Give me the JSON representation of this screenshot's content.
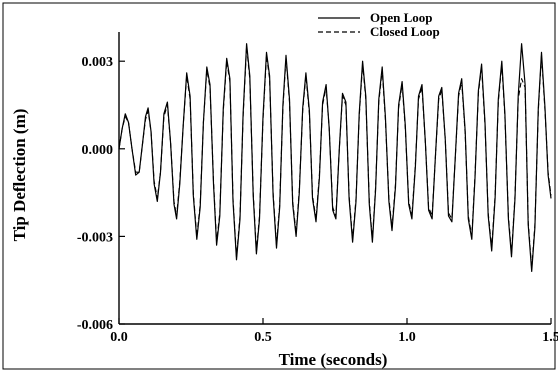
{
  "chart_data": {
    "type": "line",
    "title": "",
    "xlabel": "Time (seconds)",
    "ylabel": "Tip Deflection (m)",
    "xlim": [
      0.0,
      1.5
    ],
    "ylim": [
      -0.006,
      0.004
    ],
    "xticks": [
      {
        "value": 0.0,
        "label": "0.0"
      },
      {
        "value": 0.5,
        "label": "0.5"
      },
      {
        "value": 1.0,
        "label": "1.0"
      },
      {
        "value": 1.5,
        "label": "1.5"
      }
    ],
    "yticks": [
      {
        "value": 0.003,
        "label": "0.003"
      },
      {
        "value": 0.0,
        "label": "0.000"
      },
      {
        "value": -0.003,
        "label": "-0.003"
      },
      {
        "value": -0.006,
        "label": "-0.006"
      }
    ],
    "grid": false,
    "legend_position": "top-right",
    "series": [
      {
        "name": "Open Loop",
        "style": "solid",
        "color": "#000000",
        "x": [
          0.0,
          0.011,
          0.022,
          0.033,
          0.045,
          0.058,
          0.07,
          0.082,
          0.092,
          0.101,
          0.111,
          0.122,
          0.133,
          0.144,
          0.156,
          0.168,
          0.179,
          0.191,
          0.2,
          0.211,
          0.223,
          0.235,
          0.247,
          0.258,
          0.27,
          0.282,
          0.293,
          0.305,
          0.316,
          0.328,
          0.339,
          0.35,
          0.362,
          0.374,
          0.385,
          0.396,
          0.408,
          0.42,
          0.431,
          0.443,
          0.454,
          0.466,
          0.477,
          0.488,
          0.5,
          0.512,
          0.523,
          0.535,
          0.547,
          0.558,
          0.569,
          0.58,
          0.592,
          0.603,
          0.615,
          0.626,
          0.638,
          0.649,
          0.661,
          0.672,
          0.684,
          0.696,
          0.707,
          0.719,
          0.73,
          0.742,
          0.753,
          0.765,
          0.776,
          0.788,
          0.799,
          0.811,
          0.823,
          0.834,
          0.846,
          0.857,
          0.869,
          0.88,
          0.891,
          0.902,
          0.914,
          0.925,
          0.937,
          0.948,
          0.96,
          0.971,
          0.983,
          0.994,
          1.006,
          1.017,
          1.029,
          1.04,
          1.052,
          1.064,
          1.075,
          1.087,
          1.098,
          1.11,
          1.121,
          1.133,
          1.144,
          1.156,
          1.167,
          1.179,
          1.19,
          1.202,
          1.213,
          1.225,
          1.236,
          1.248,
          1.259,
          1.271,
          1.282,
          1.294,
          1.306,
          1.317,
          1.329,
          1.34,
          1.352,
          1.363,
          1.375,
          1.386,
          1.398,
          1.41,
          1.421,
          1.433,
          1.444,
          1.456,
          1.467,
          1.479,
          1.49,
          1.5
        ],
        "y": [
          0.0,
          0.0007,
          0.0012,
          0.0009,
          0.0,
          -0.0009,
          -0.0008,
          0.0002,
          0.0011,
          0.0014,
          0.0006,
          -0.0012,
          -0.0018,
          -0.0008,
          0.0012,
          0.0016,
          0.0002,
          -0.0019,
          -0.0024,
          -0.0012,
          0.0008,
          0.0026,
          0.0018,
          -0.0016,
          -0.0031,
          -0.002,
          0.0009,
          0.0028,
          0.0022,
          -0.0012,
          -0.0033,
          -0.0023,
          0.0014,
          0.0031,
          0.0024,
          -0.0018,
          -0.0038,
          -0.0024,
          0.0012,
          0.0036,
          0.0025,
          -0.0016,
          -0.0036,
          -0.0024,
          0.0011,
          0.0033,
          0.0025,
          -0.0016,
          -0.0034,
          -0.002,
          0.0015,
          0.0032,
          0.0017,
          -0.0019,
          -0.003,
          -0.0015,
          0.0014,
          0.0026,
          0.0013,
          -0.0017,
          -0.0025,
          -0.001,
          0.0016,
          0.0022,
          0.0007,
          -0.0021,
          -0.0024,
          0.0,
          0.0019,
          0.0016,
          -0.0017,
          -0.0032,
          -0.0018,
          0.0012,
          0.003,
          0.0018,
          -0.0019,
          -0.0032,
          -0.0014,
          0.0017,
          0.0028,
          0.0011,
          -0.0018,
          -0.0028,
          -0.0013,
          0.0015,
          0.0023,
          0.0008,
          -0.0019,
          -0.0024,
          -0.0006,
          0.0018,
          0.0022,
          0.0002,
          -0.0021,
          -0.0024,
          -0.0004,
          0.0018,
          0.0021,
          0.0003,
          -0.0023,
          -0.0025,
          -0.0004,
          0.0019,
          0.0024,
          0.0006,
          -0.0024,
          -0.0031,
          -0.001,
          0.002,
          0.0029,
          0.0009,
          -0.0023,
          -0.0035,
          -0.0017,
          0.0017,
          0.003,
          0.0012,
          -0.0024,
          -0.0037,
          -0.0017,
          0.0018,
          0.0036,
          0.0022,
          -0.0026,
          -0.0042,
          -0.0027,
          0.0014,
          0.0033,
          0.0014,
          -0.0009,
          -0.0017
        ],
        "note": ""
      },
      {
        "name": "Closed Loop",
        "style": "dashed",
        "color": "#000000",
        "x": [
          0.0,
          0.011,
          0.022,
          0.033,
          0.045,
          0.058,
          0.07,
          0.082,
          0.092,
          0.101,
          0.111,
          0.122,
          0.133,
          0.144,
          0.156,
          0.168,
          0.179,
          0.191,
          0.2,
          0.211,
          0.223,
          0.235,
          0.247,
          0.258,
          0.27,
          0.282,
          0.293,
          0.305,
          0.316,
          0.328,
          0.339,
          0.35,
          0.362,
          0.374,
          0.385,
          0.396,
          0.408,
          0.42,
          0.431,
          0.443,
          0.454,
          0.466,
          0.477,
          0.488,
          0.5,
          0.512,
          0.523,
          0.535,
          0.547,
          0.558,
          0.569,
          0.58,
          0.592,
          0.603,
          0.615,
          0.626,
          0.638,
          0.649,
          0.661,
          0.672,
          0.684,
          0.696,
          0.707,
          0.719,
          0.73,
          0.742,
          0.753,
          0.765,
          0.776,
          0.788,
          0.799,
          0.811,
          0.823,
          0.834,
          0.846,
          0.857,
          0.869,
          0.88,
          0.891,
          0.902,
          0.914,
          0.925,
          0.937,
          0.948,
          0.96,
          0.971,
          0.983,
          0.994,
          1.006,
          1.017,
          1.029,
          1.04,
          1.052,
          1.064,
          1.075,
          1.087,
          1.098,
          1.11,
          1.121,
          1.133,
          1.144,
          1.156,
          1.167,
          1.179,
          1.19,
          1.202,
          1.213,
          1.225,
          1.236,
          1.248,
          1.259,
          1.271,
          1.282,
          1.294,
          1.306,
          1.317,
          1.329,
          1.34,
          1.352,
          1.363,
          1.375,
          1.386,
          1.398,
          1.41,
          1.421,
          1.433,
          1.444,
          1.456,
          1.467,
          1.479,
          1.49,
          1.5
        ],
        "y": [
          0.0,
          0.0007,
          0.0011,
          0.0009,
          0.0,
          -0.0008,
          -0.0008,
          0.0002,
          0.001,
          0.0013,
          0.0006,
          -0.0011,
          -0.0017,
          -0.0008,
          0.0011,
          0.0015,
          0.0002,
          -0.0018,
          -0.0023,
          -0.0011,
          0.0008,
          0.0025,
          0.0017,
          -0.0015,
          -0.003,
          -0.0019,
          0.0009,
          0.0027,
          0.0021,
          -0.0011,
          -0.0032,
          -0.0022,
          0.0013,
          0.003,
          0.0023,
          -0.0017,
          -0.0037,
          -0.0023,
          0.0011,
          0.0035,
          0.0024,
          -0.0015,
          -0.0035,
          -0.0023,
          0.001,
          0.0032,
          0.0024,
          -0.0015,
          -0.0033,
          -0.0019,
          0.0014,
          0.0031,
          0.0016,
          -0.0018,
          -0.0029,
          -0.0014,
          0.0013,
          0.0025,
          0.0012,
          -0.0016,
          -0.0024,
          -0.0009,
          0.0015,
          0.0021,
          0.0007,
          -0.002,
          -0.0023,
          0.0,
          0.0018,
          0.0015,
          -0.0016,
          -0.0031,
          -0.0017,
          0.0011,
          0.0029,
          0.0017,
          -0.0018,
          -0.0031,
          -0.0013,
          0.0016,
          0.0027,
          0.001,
          -0.0017,
          -0.0027,
          -0.0012,
          0.0014,
          0.0022,
          0.0007,
          -0.0018,
          -0.0023,
          -0.0005,
          0.0017,
          0.0021,
          0.0002,
          -0.002,
          -0.0023,
          -0.0004,
          0.0017,
          0.002,
          0.0003,
          -0.0022,
          -0.0024,
          -0.0004,
          0.0018,
          0.0023,
          0.0005,
          -0.0023,
          -0.003,
          -0.0009,
          0.0019,
          0.0028,
          0.0008,
          -0.0022,
          -0.0034,
          -0.0016,
          0.0016,
          0.0029,
          0.0011,
          -0.0023,
          -0.0036,
          -0.0016,
          0.0017,
          0.0024,
          0.0021,
          -0.0025,
          -0.0041,
          -0.0026,
          0.0013,
          0.0032,
          0.0013,
          -0.0008,
          -0.0016
        ],
        "note": ""
      }
    ]
  }
}
